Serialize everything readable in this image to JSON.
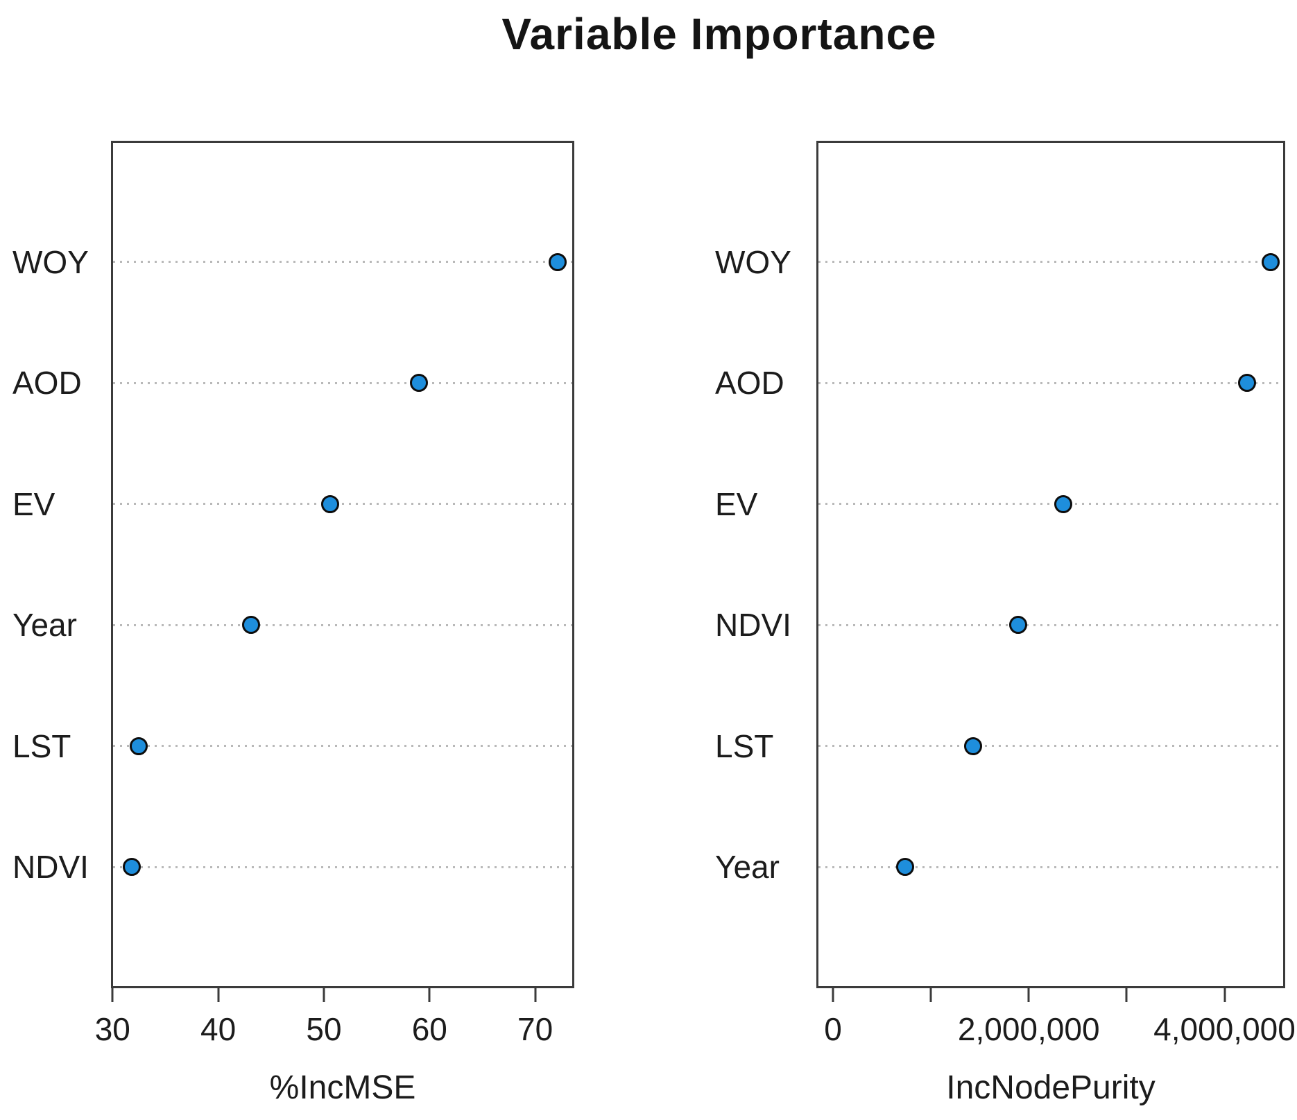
{
  "title": "Variable Importance",
  "chart_data": [
    {
      "type": "scatter",
      "subtype": "dot-chart",
      "panel": "left",
      "title": "",
      "xlabel": "%IncMSE",
      "ylabel": "",
      "categories": [
        "WOY",
        "AOD",
        "EV",
        "Year",
        "LST",
        "NDVI"
      ],
      "values": [
        72.1,
        59.0,
        50.6,
        43.1,
        32.5,
        31.8
      ],
      "x_ticks": [
        30,
        40,
        50,
        60,
        70
      ],
      "x_tick_labels": [
        "30",
        "40",
        "50",
        "60",
        "70"
      ],
      "xlim": [
        29.85,
        73.7
      ],
      "grid": "dotted-horizontal",
      "legend": "none",
      "point_color": "#1e8edc",
      "point_border_color": "#0d0d0d",
      "grid_color": "#b9b9b9",
      "axis_color": "#3b3b3b"
    },
    {
      "type": "scatter",
      "subtype": "dot-chart",
      "panel": "right",
      "title": "",
      "xlabel": "IncNodePurity",
      "ylabel": "",
      "categories": [
        "WOY",
        "AOD",
        "EV",
        "NDVI",
        "LST",
        "Year"
      ],
      "values": [
        4470000,
        4230000,
        2350000,
        1890000,
        1430000,
        740000
      ],
      "x_ticks": [
        0,
        1000000,
        2000000,
        3000000,
        4000000
      ],
      "x_tick_labels": [
        "0",
        "",
        "2,000,000",
        "",
        "4,000,000"
      ],
      "xlim": [
        -170000,
        4620000
      ],
      "grid": "dotted-horizontal",
      "legend": "none",
      "point_color": "#1e8edc",
      "point_border_color": "#0d0d0d",
      "grid_color": "#b9b9b9",
      "axis_color": "#3b3b3b"
    }
  ]
}
